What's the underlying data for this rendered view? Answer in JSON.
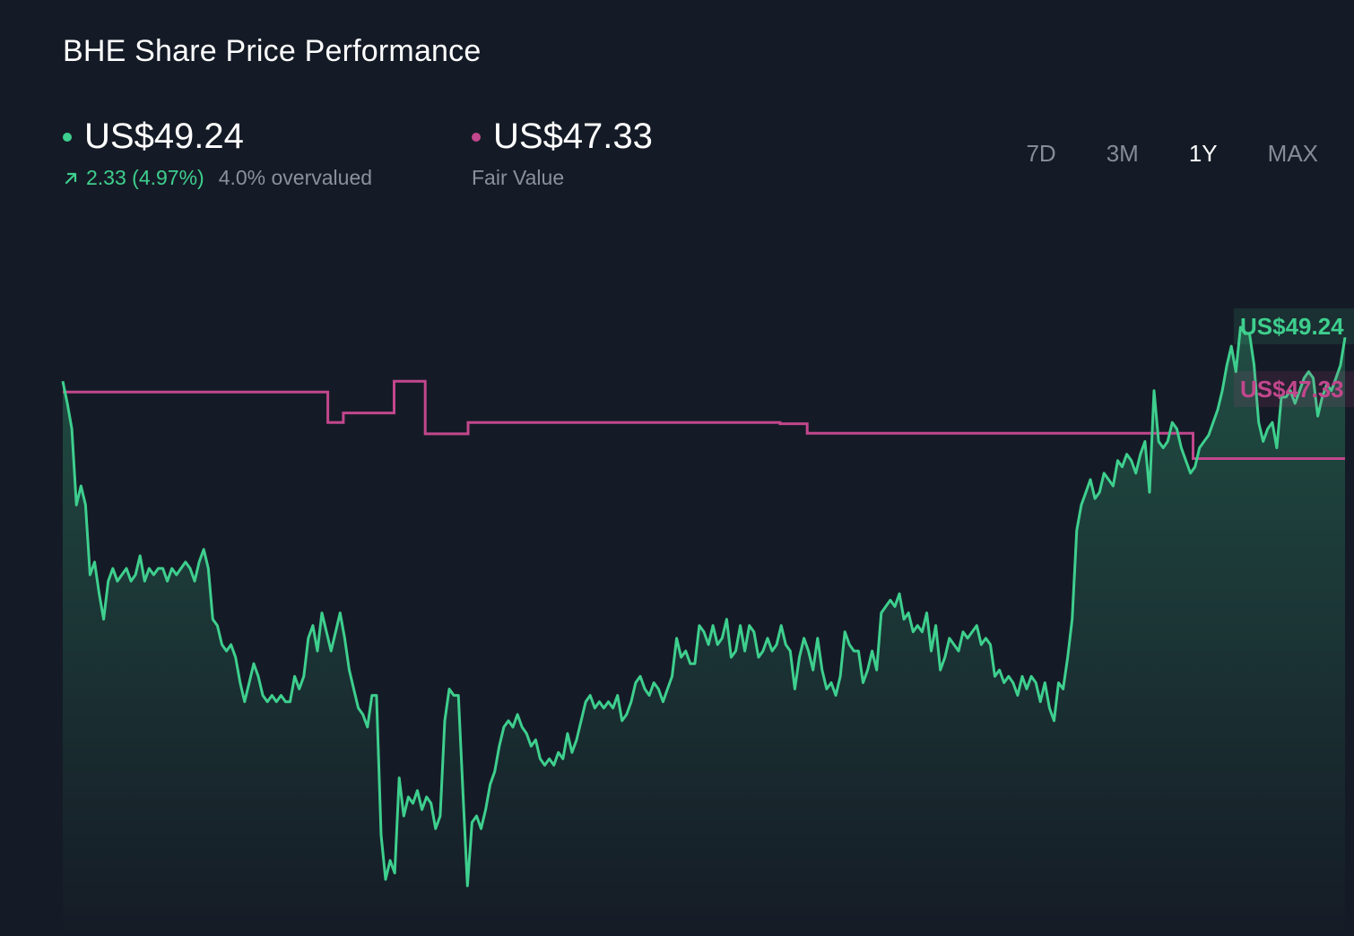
{
  "title": "BHE Share Price Performance",
  "price": {
    "value": "US$49.24",
    "change": "2.33 (4.97%)",
    "valuation": "4.0% overvalued"
  },
  "fair_value": {
    "value": "US$47.33",
    "label": "Fair Value"
  },
  "ranges": [
    "7D",
    "3M",
    "1Y",
    "MAX"
  ],
  "active_range": "1Y",
  "colors": {
    "price": "#3ecf8e",
    "fair_value": "#c2478d",
    "background": "#151b26"
  },
  "chart_data": {
    "type": "line",
    "series": [
      {
        "name": "Share Price",
        "end_label": "US$49.24",
        "values": [
          48.55,
          48.2,
          47.8,
          46.6,
          46.9,
          46.6,
          45.5,
          45.7,
          45.2,
          44.8,
          45.4,
          45.6,
          45.4,
          45.5,
          45.6,
          45.4,
          45.5,
          45.8,
          45.4,
          45.6,
          45.5,
          45.6,
          45.6,
          45.4,
          45.6,
          45.5,
          45.6,
          45.7,
          45.6,
          45.4,
          45.7,
          45.9,
          45.6,
          44.8,
          44.7,
          44.4,
          44.3,
          44.4,
          44.2,
          43.8,
          43.5,
          43.8,
          44.1,
          43.9,
          43.6,
          43.5,
          43.6,
          43.5,
          43.6,
          43.5,
          43.5,
          43.9,
          43.7,
          43.9,
          44.5,
          44.7,
          44.3,
          44.9,
          44.6,
          44.3,
          44.6,
          44.9,
          44.5,
          44.0,
          43.7,
          43.4,
          43.3,
          43.1,
          43.6,
          43.6,
          41.4,
          40.7,
          41.0,
          40.8,
          42.3,
          41.7,
          42.0,
          41.9,
          42.1,
          41.8,
          42.0,
          41.9,
          41.5,
          41.7,
          43.2,
          43.7,
          43.6,
          43.6,
          42.1,
          40.6,
          41.6,
          41.7,
          41.5,
          41.8,
          42.2,
          42.4,
          42.8,
          43.1,
          43.2,
          43.1,
          43.3,
          43.1,
          43.0,
          42.8,
          42.9,
          42.6,
          42.5,
          42.6,
          42.5,
          42.7,
          42.6,
          43.0,
          42.7,
          42.9,
          43.2,
          43.5,
          43.6,
          43.4,
          43.5,
          43.4,
          43.5,
          43.4,
          43.6,
          43.2,
          43.3,
          43.5,
          43.8,
          43.9,
          43.7,
          43.6,
          43.8,
          43.7,
          43.5,
          43.7,
          43.9,
          44.5,
          44.2,
          44.3,
          44.1,
          44.1,
          44.7,
          44.6,
          44.4,
          44.7,
          44.4,
          44.5,
          44.8,
          44.2,
          44.3,
          44.7,
          44.3,
          44.7,
          44.6,
          44.2,
          44.3,
          44.5,
          44.3,
          44.4,
          44.7,
          44.4,
          44.3,
          43.7,
          44.2,
          44.5,
          44.3,
          44.0,
          44.5,
          44.0,
          43.7,
          43.8,
          43.6,
          43.9,
          44.6,
          44.4,
          44.3,
          44.3,
          43.8,
          44.0,
          44.3,
          44.0,
          44.9,
          45.0,
          45.1,
          45.0,
          45.2,
          44.8,
          44.9,
          44.6,
          44.7,
          44.6,
          44.9,
          44.3,
          44.7,
          44.0,
          44.2,
          44.5,
          44.4,
          44.3,
          44.6,
          44.5,
          44.6,
          44.7,
          44.4,
          44.5,
          44.4,
          43.9,
          44.0,
          43.8,
          43.9,
          43.8,
          43.6,
          43.9,
          43.7,
          43.9,
          43.8,
          43.5,
          43.8,
          43.4,
          43.2,
          43.8,
          43.7,
          44.2,
          44.8,
          46.2,
          46.6,
          46.8,
          47.0,
          46.7,
          46.8,
          47.1,
          47.0,
          46.9,
          47.3,
          47.2,
          47.4,
          47.3,
          47.1,
          47.4,
          47.6,
          46.8,
          48.4,
          47.6,
          47.5,
          47.6,
          47.9,
          47.8,
          47.5,
          47.3,
          47.1,
          47.2,
          47.5,
          47.6,
          47.7,
          47.9,
          48.1,
          48.4,
          48.8,
          49.1,
          48.7,
          49.4,
          49.3,
          49.3,
          48.8,
          47.9,
          47.6,
          47.8,
          47.9,
          47.5,
          48.3,
          48.3,
          48.4,
          48.2,
          48.4,
          48.6,
          48.7,
          48.6,
          48.0,
          48.3,
          48.5,
          48.4,
          48.6,
          48.8,
          49.24
        ]
      },
      {
        "name": "Fair Value",
        "end_label": "US$47.33",
        "values": [
          48.38,
          48.38,
          48.38,
          48.38,
          48.38,
          48.38,
          48.38,
          48.38,
          48.38,
          48.38,
          48.38,
          48.38,
          48.38,
          48.38,
          48.38,
          48.38,
          48.38,
          48.38,
          48.38,
          48.38,
          48.38,
          48.38,
          48.38,
          48.38,
          48.38,
          48.38,
          48.38,
          48.38,
          48.38,
          48.38,
          48.38,
          48.38,
          48.38,
          48.38,
          48.38,
          48.38,
          48.38,
          48.38,
          48.38,
          48.38,
          48.38,
          48.38,
          48.38,
          48.38,
          48.38,
          48.38,
          48.38,
          48.38,
          48.38,
          48.38,
          48.38,
          48.38,
          48.38,
          48.38,
          48.38,
          48.38,
          48.38,
          48.38,
          48.38,
          48.38,
          48.38,
          48.38,
          48.38,
          48.38,
          48.38,
          48.38,
          48.38,
          48.38,
          47.9,
          47.9,
          47.9,
          47.9,
          48.05,
          48.05,
          48.05,
          48.05,
          48.05,
          48.05,
          48.05,
          48.05,
          48.05,
          48.05,
          48.05,
          48.05,
          48.05,
          48.55,
          48.55,
          48.55,
          48.55,
          48.55,
          48.55,
          48.55,
          48.55,
          47.72,
          47.72,
          47.72,
          47.72,
          47.72,
          47.72,
          47.72,
          47.72,
          47.72,
          47.72,
          47.72,
          47.9,
          47.9,
          47.9,
          47.9,
          47.9,
          47.9,
          47.9,
          47.9,
          47.9,
          47.9,
          47.9,
          47.9,
          47.9,
          47.9,
          47.9,
          47.9,
          47.9,
          47.9,
          47.9,
          47.9,
          47.9,
          47.9,
          47.9,
          47.9,
          47.9,
          47.9,
          47.9,
          47.9,
          47.9,
          47.9,
          47.9,
          47.9,
          47.9,
          47.9,
          47.9,
          47.9,
          47.9,
          47.9,
          47.9,
          47.9,
          47.9,
          47.9,
          47.9,
          47.9,
          47.9,
          47.9,
          47.9,
          47.9,
          47.9,
          47.9,
          47.9,
          47.9,
          47.9,
          47.9,
          47.9,
          47.9,
          47.9,
          47.9,
          47.9,
          47.9,
          47.9,
          47.9,
          47.9,
          47.9,
          47.9,
          47.9,
          47.9,
          47.9,
          47.9,
          47.9,
          47.9,
          47.9,
          47.9,
          47.9,
          47.9,
          47.9,
          47.9,
          47.9,
          47.9,
          47.9,
          47.88,
          47.88,
          47.88,
          47.88,
          47.88,
          47.88,
          47.88,
          47.73,
          47.73,
          47.73,
          47.73,
          47.73,
          47.73,
          47.73,
          47.73,
          47.73,
          47.73,
          47.73,
          47.73,
          47.73,
          47.73,
          47.73,
          47.73,
          47.73,
          47.73,
          47.73,
          47.73,
          47.73,
          47.73,
          47.73,
          47.73,
          47.73,
          47.73,
          47.73,
          47.73,
          47.73,
          47.73,
          47.73,
          47.73,
          47.73,
          47.73,
          47.73,
          47.73,
          47.73,
          47.73,
          47.73,
          47.73,
          47.73,
          47.73,
          47.73,
          47.73,
          47.73,
          47.73,
          47.73,
          47.73,
          47.73,
          47.73,
          47.73,
          47.73,
          47.73,
          47.73,
          47.73,
          47.73,
          47.73,
          47.73,
          47.73,
          47.73,
          47.73,
          47.73,
          47.73,
          47.73,
          47.73,
          47.73,
          47.73,
          47.73,
          47.73,
          47.73,
          47.73,
          47.73,
          47.73,
          47.73,
          47.73,
          47.73,
          47.73,
          47.73,
          47.73,
          47.73,
          47.73,
          47.73,
          47.73,
          47.73,
          47.73,
          47.73,
          47.73,
          47.73,
          47.73,
          47.73,
          47.73,
          47.73,
          47.73,
          47.73,
          47.73,
          47.73,
          47.73,
          47.73,
          47.73,
          47.33,
          47.33,
          47.33,
          47.33,
          47.33,
          47.33,
          47.33,
          47.33,
          47.33,
          47.33,
          47.33,
          47.33,
          47.33,
          47.33,
          47.33,
          47.33,
          47.33,
          47.33,
          47.33,
          47.33,
          47.33,
          47.33,
          47.33,
          47.33,
          47.33,
          47.33,
          47.33,
          47.33,
          47.33,
          47.33,
          47.33,
          47.33,
          47.33,
          47.33,
          47.33,
          47.33,
          47.33,
          47.33,
          47.33,
          47.33
        ]
      }
    ],
    "grid": false,
    "axes_visible": false
  }
}
